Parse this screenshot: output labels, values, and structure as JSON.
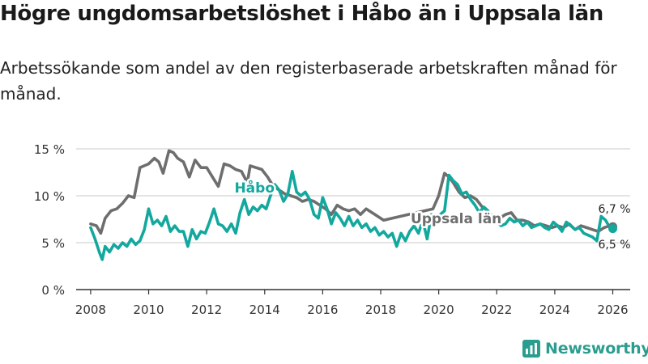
{
  "title": "Högre ungdomsarbetslöshet i Håbo än i Uppsala län",
  "subtitle": "Arbetssökande som andel av den registerbaserade arbetskraften månad för månad.",
  "brand": "Newsworthy",
  "colors": {
    "habo": "#13a89e",
    "uppsala": "#6e6e6e",
    "grid": "#d4d4d4",
    "axis": "#333333",
    "brand": "#2a9d8f"
  },
  "chart_data": {
    "type": "line",
    "title": "Högre ungdomsarbetslöshet i Håbo än i Uppsala län",
    "xlabel": "",
    "ylabel": "",
    "xlim": [
      2007.5,
      2026.6
    ],
    "ylim": [
      0,
      15
    ],
    "yticks": [
      0,
      5,
      10,
      15
    ],
    "ytick_labels": [
      "0 %",
      "5 %",
      "10 %",
      "15 %"
    ],
    "xticks": [
      2008,
      2010,
      2012,
      2014,
      2016,
      2018,
      2020,
      2022,
      2024,
      2026
    ],
    "xtick_labels": [
      "2008",
      "2010",
      "2012",
      "2014",
      "2016",
      "2018",
      "2020",
      "2022",
      "2024",
      "2026"
    ],
    "grid": true,
    "series": [
      {
        "name": "Uppsala län",
        "x": [
          2008.0,
          2008.2,
          2008.35,
          2008.5,
          2008.7,
          2008.9,
          2009.1,
          2009.3,
          2009.5,
          2009.7,
          2009.85,
          2010.0,
          2010.2,
          2010.35,
          2010.5,
          2010.7,
          2010.85,
          2011.0,
          2011.2,
          2011.4,
          2011.6,
          2011.8,
          2012.0,
          2012.2,
          2012.4,
          2012.6,
          2012.8,
          2013.0,
          2013.2,
          2013.4,
          2013.5,
          2013.7,
          2013.9,
          2014.1,
          2014.3,
          2014.5,
          2014.7,
          2014.9,
          2015.1,
          2015.3,
          2015.5,
          2015.7,
          2015.9,
          2016.1,
          2016.3,
          2016.5,
          2016.7,
          2016.9,
          2017.1,
          2017.3,
          2017.5,
          2017.7,
          2017.9,
          2018.1,
          2019.8,
          2020.0,
          2020.2,
          2020.35,
          2020.5,
          2020.7,
          2020.9,
          2021.1,
          2021.3,
          2021.5,
          2021.7,
          2021.9,
          2022.1,
          2022.3,
          2022.5,
          2022.7,
          2022.9,
          2023.1,
          2023.3,
          2023.5,
          2023.7,
          2023.9,
          2024.1,
          2024.3,
          2024.5,
          2024.7,
          2024.9,
          2025.1,
          2025.3,
          2025.5,
          2025.7,
          2025.9,
          2026.0
        ],
        "values": [
          7.0,
          6.8,
          6.0,
          7.6,
          8.4,
          8.6,
          9.2,
          10.0,
          9.8,
          13.0,
          13.2,
          13.4,
          14.0,
          13.6,
          12.4,
          14.8,
          14.6,
          14.0,
          13.6,
          12.0,
          13.8,
          13.0,
          13.0,
          12.0,
          11.0,
          13.4,
          13.2,
          12.8,
          12.6,
          11.4,
          13.2,
          13.0,
          12.8,
          12.0,
          11.0,
          10.6,
          10.2,
          10.0,
          9.8,
          9.4,
          9.6,
          9.4,
          9.0,
          8.6,
          8.0,
          9.0,
          8.6,
          8.4,
          8.6,
          8.0,
          8.6,
          8.2,
          7.8,
          7.4,
          8.6,
          10.0,
          12.4,
          12.0,
          11.4,
          10.4,
          9.8,
          10.0,
          9.6,
          8.8,
          8.4,
          7.6,
          7.6,
          8.0,
          8.2,
          7.4,
          7.4,
          7.2,
          6.8,
          7.0,
          6.8,
          6.6,
          6.8,
          6.6,
          7.0,
          6.4,
          6.8,
          6.6,
          6.4,
          6.2,
          6.6,
          6.8,
          6.7
        ]
      },
      {
        "name": "Håbo",
        "x": [
          2008.0,
          2008.15,
          2008.3,
          2008.4,
          2008.5,
          2008.65,
          2008.8,
          2008.95,
          2009.1,
          2009.25,
          2009.4,
          2009.55,
          2009.7,
          2009.85,
          2010.0,
          2010.15,
          2010.3,
          2010.45,
          2010.6,
          2010.75,
          2010.9,
          2011.05,
          2011.2,
          2011.35,
          2011.5,
          2011.65,
          2011.8,
          2011.95,
          2012.1,
          2012.25,
          2012.4,
          2012.55,
          2012.7,
          2012.85,
          2013.0,
          2013.15,
          2013.3,
          2013.45,
          2013.6,
          2013.75,
          2013.9,
          2014.05,
          2014.2,
          2014.35,
          2014.5,
          2014.65,
          2014.8,
          2014.95,
          2015.1,
          2015.25,
          2015.4,
          2015.55,
          2015.7,
          2015.85,
          2016.0,
          2016.15,
          2016.3,
          2016.45,
          2016.6,
          2016.75,
          2016.9,
          2017.05,
          2017.2,
          2017.35,
          2017.5,
          2017.65,
          2017.8,
          2017.95,
          2018.1,
          2018.25,
          2018.4,
          2018.55,
          2018.7,
          2018.85,
          2019.0,
          2019.15,
          2019.3,
          2019.45,
          2019.6,
          2019.75,
          2019.9,
          2020.05,
          2020.2,
          2020.35,
          2020.5,
          2020.65,
          2020.8,
          2020.95,
          2021.1,
          2021.25,
          2021.4,
          2021.55,
          2021.7,
          2021.85,
          2022.0,
          2022.15,
          2022.3,
          2022.45,
          2022.6,
          2022.75,
          2022.9,
          2023.05,
          2023.2,
          2023.35,
          2023.5,
          2023.65,
          2023.8,
          2023.95,
          2024.1,
          2024.25,
          2024.4,
          2024.55,
          2024.7,
          2024.85,
          2025.0,
          2025.15,
          2025.3,
          2025.45,
          2025.6,
          2025.75,
          2025.9,
          2026.0
        ],
        "values": [
          6.6,
          5.4,
          4.0,
          3.2,
          4.6,
          4.0,
          4.8,
          4.4,
          5.0,
          4.6,
          5.4,
          4.8,
          5.2,
          6.4,
          8.6,
          7.0,
          7.4,
          6.8,
          7.8,
          6.2,
          6.8,
          6.2,
          6.2,
          4.6,
          6.4,
          5.4,
          6.2,
          6.0,
          7.2,
          8.6,
          7.0,
          6.8,
          6.2,
          7.0,
          6.0,
          8.2,
          9.6,
          8.0,
          8.8,
          8.4,
          9.0,
          8.6,
          10.0,
          11.2,
          10.6,
          9.4,
          10.2,
          12.6,
          10.4,
          10.0,
          10.4,
          9.6,
          8.0,
          7.6,
          9.8,
          8.6,
          7.0,
          8.2,
          7.6,
          6.8,
          7.8,
          6.8,
          7.4,
          6.6,
          7.0,
          6.2,
          6.6,
          5.8,
          6.2,
          5.6,
          6.0,
          4.6,
          6.0,
          5.2,
          6.2,
          6.8,
          6.0,
          7.4,
          5.4,
          8.0,
          7.2,
          8.0,
          8.4,
          12.2,
          11.6,
          11.2,
          10.2,
          10.4,
          9.6,
          9.0,
          8.2,
          8.8,
          8.4,
          7.6,
          7.2,
          6.8,
          7.0,
          7.6,
          7.2,
          7.4,
          6.8,
          7.2,
          6.6,
          6.8,
          7.0,
          6.6,
          6.4,
          7.2,
          6.8,
          6.2,
          7.2,
          6.8,
          6.4,
          6.6,
          6.0,
          5.8,
          5.6,
          5.2,
          7.8,
          7.4,
          6.6,
          6.5
        ]
      }
    ],
    "labels": {
      "habo_series": "Håbo",
      "uppsala_series": "Uppsala län",
      "uppsala_end": "6,7 %",
      "habo_end": "6,5 %"
    }
  }
}
